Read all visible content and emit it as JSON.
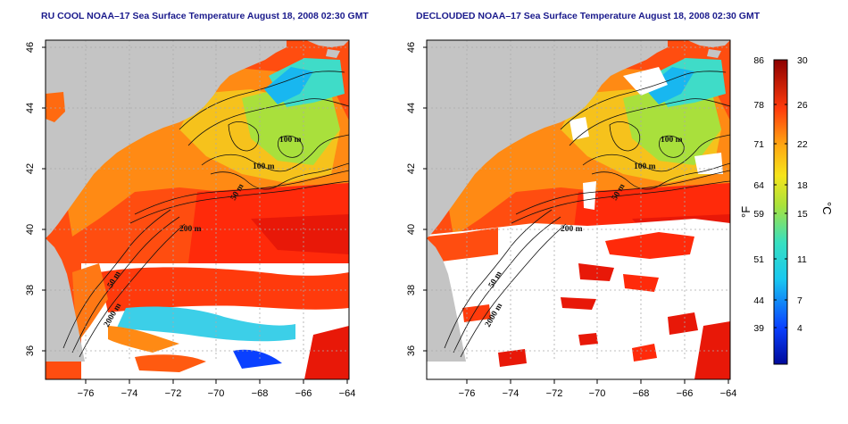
{
  "panels": [
    {
      "title": "RU COOL NOAA–17 Sea Surface Temperature August 18, 2008 02:30 GMT",
      "contour_labels": [
        "100 m",
        "100 m",
        "50 m",
        "200 m",
        "50 m",
        "2000 m"
      ]
    },
    {
      "title": "DECLOUDED NOAA–17 Sea Surface Temperature August 18, 2008 02:30 GMT",
      "contour_labels": [
        "100 m",
        "100 m",
        "50 m",
        "200 m",
        "50 m",
        "2000 m"
      ]
    }
  ],
  "axes": {
    "x_ticks": [
      "−76",
      "−74",
      "−72",
      "−70",
      "−68",
      "−66",
      "−64"
    ],
    "y_ticks": [
      "36",
      "38",
      "40",
      "42",
      "44",
      "46"
    ]
  },
  "colorbar": {
    "f_label": "°F",
    "c_label": "°C",
    "f_ticks": [
      "86",
      "78",
      "71",
      "64",
      "59",
      "51",
      "44",
      "39"
    ],
    "c_ticks": [
      "30",
      "26",
      "22",
      "18",
      "15",
      "11",
      "7",
      "4"
    ]
  },
  "colors": {
    "land": "#c4c4c4",
    "cloud": "#ffffff",
    "title": "#1a1a8c"
  }
}
